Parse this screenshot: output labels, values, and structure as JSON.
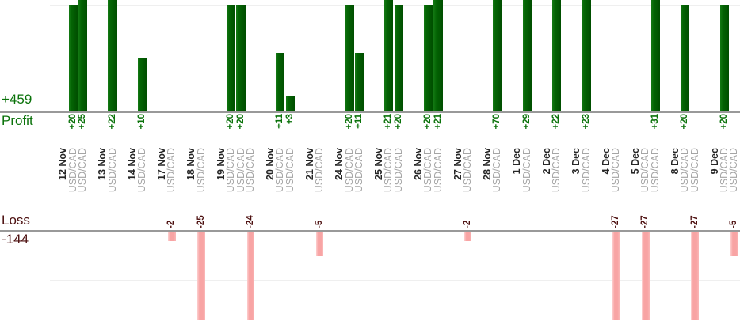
{
  "chart_data": {
    "type": "bar",
    "orientation": "vertical",
    "x_axis_label_format": "rotated-90",
    "profit_section": {
      "label": "Profit",
      "total": "+459",
      "gridline_values": [
        10,
        20
      ],
      "axis_side": "bottom"
    },
    "loss_section": {
      "label": "Loss",
      "total": "-144",
      "gridline_values": [
        -10
      ],
      "axis_side": "top"
    },
    "days": [
      {
        "date": "12 Nov",
        "trades": [
          {
            "pair": "USD/CAD",
            "value": 20
          },
          {
            "pair": "USD/CAD",
            "value": 25
          }
        ]
      },
      {
        "date": "13 Nov",
        "trades": [
          {
            "pair": "USD/CAD",
            "value": 22
          }
        ]
      },
      {
        "date": "14 Nov",
        "trades": [
          {
            "pair": "USD/CAD",
            "value": 10
          }
        ]
      },
      {
        "date": "17 Nov",
        "trades": [
          {
            "pair": "USD/CAD",
            "value": -2
          }
        ]
      },
      {
        "date": "18 Nov",
        "trades": [
          {
            "pair": "USD/CAD",
            "value": -25
          }
        ]
      },
      {
        "date": "19 Nov",
        "trades": [
          {
            "pair": "USD/CAD",
            "value": 20
          },
          {
            "pair": "USD/CAD",
            "value": 20
          },
          {
            "pair": "USD/CAD",
            "value": -24
          }
        ]
      },
      {
        "date": "20 Nov",
        "trades": [
          {
            "pair": "USD/CAD",
            "value": 11
          },
          {
            "pair": "USD/CAD",
            "value": 3
          }
        ]
      },
      {
        "date": "21 Nov",
        "trades": [
          {
            "pair": "USD/CAD",
            "value": -5
          }
        ]
      },
      {
        "date": "24 Nov",
        "trades": [
          {
            "pair": "USD/CAD",
            "value": 20
          },
          {
            "pair": "USD/CAD",
            "value": 11
          }
        ]
      },
      {
        "date": "25 Nov",
        "trades": [
          {
            "pair": "USD/CAD",
            "value": 21
          },
          {
            "pair": "USD/CAD",
            "value": 20
          }
        ]
      },
      {
        "date": "26 Nov",
        "trades": [
          {
            "pair": "USD/CAD",
            "value": 20
          },
          {
            "pair": "USD/CAD",
            "value": 21
          }
        ]
      },
      {
        "date": "27 Nov",
        "trades": [
          {
            "pair": "USD/CAD",
            "value": -2
          }
        ]
      },
      {
        "date": "28 Nov",
        "trades": [
          {
            "pair": "USD/CAD",
            "value": 70
          }
        ]
      },
      {
        "date": "1 Dec",
        "trades": [
          {
            "pair": "USD/CAD",
            "value": 29
          }
        ]
      },
      {
        "date": "2 Dec",
        "trades": [
          {
            "pair": "USD/CAD",
            "value": 22
          }
        ]
      },
      {
        "date": "3 Dec",
        "trades": [
          {
            "pair": "USD/CAD",
            "value": 23
          }
        ]
      },
      {
        "date": "4 Dec",
        "trades": [
          {
            "pair": "USD/CAD",
            "value": -27
          }
        ]
      },
      {
        "date": "5 Dec",
        "trades": [
          {
            "pair": "USD/CAD",
            "value": -27
          },
          {
            "pair": "USD/CAD",
            "value": 31
          }
        ]
      },
      {
        "date": "8 Dec",
        "trades": [
          {
            "pair": "USD/CAD",
            "value": 20
          },
          {
            "pair": "USD/CAD",
            "value": -27
          }
        ]
      },
      {
        "date": "9 Dec",
        "trades": [
          {
            "pair": "USD/CAD",
            "value": 20
          },
          {
            "pair": "USD/CAD",
            "value": -5
          }
        ]
      }
    ]
  },
  "colors": {
    "profit_text_green": "#0a720a",
    "profit_bar_green": "#046404",
    "loss_text_maroon": "#4c0f0f",
    "loss_bar_pink": "#f8a4a4",
    "axis_line_gray": "#999999",
    "gridline_gray": "#efefef",
    "date_label": "#262626",
    "pair_label": "#a5a5a5"
  }
}
